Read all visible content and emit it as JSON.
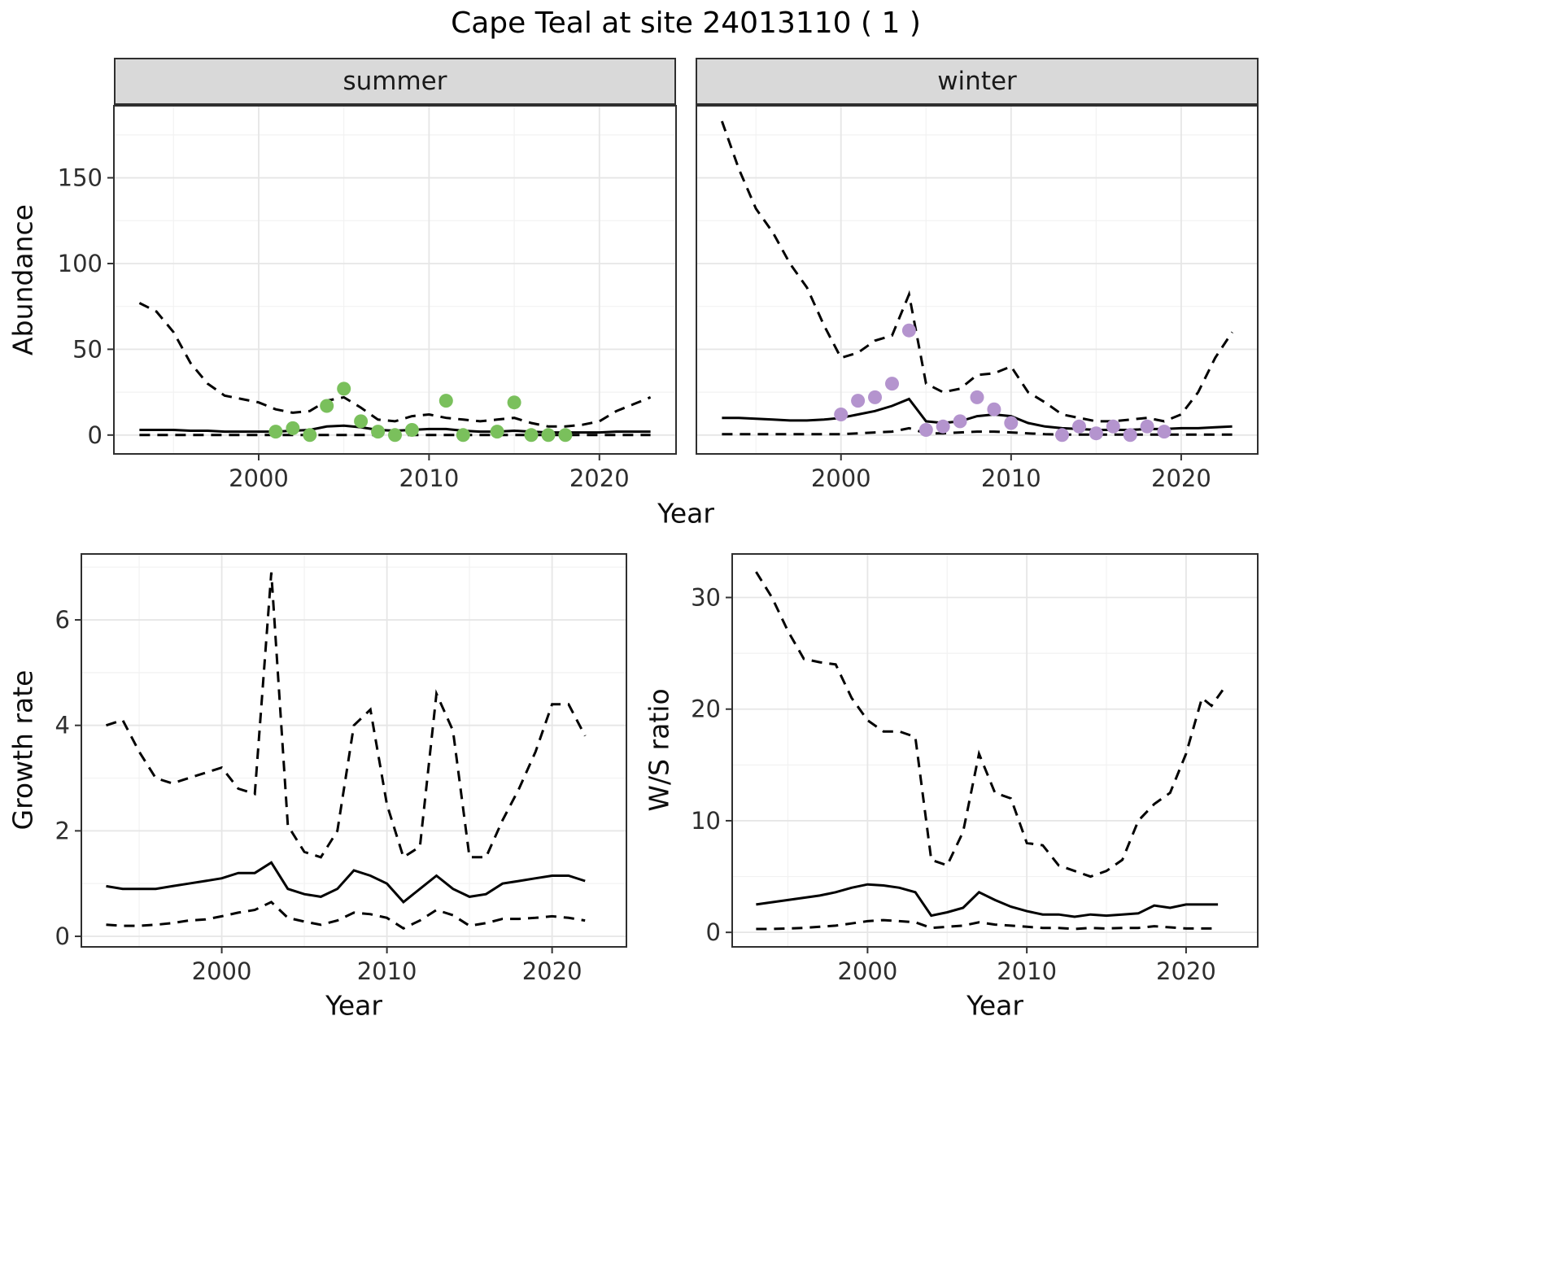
{
  "title": "Cape Teal at site 24013110 ( 1 )",
  "colors": {
    "summer_points": "#7ac05c",
    "winter_points": "#b494ce",
    "line": "#000000",
    "strip_bg": "#d9d9d9",
    "panel_border": "#2f2f2f",
    "grid_major": "#e6e6e6",
    "grid_minor": "#f2f2f2",
    "tick_text": "#2e2e2e"
  },
  "chart_data": [
    {
      "id": "abundance-summer",
      "type": "line",
      "title": "summer",
      "xlabel": "Year",
      "ylabel": "Abundance",
      "xlim": [
        1991.5,
        2024.5
      ],
      "ylim": [
        -11,
        192
      ],
      "xticks": [
        2000,
        2010,
        2020
      ],
      "yticks": [
        0,
        50,
        100,
        150
      ],
      "show_y_tick_labels": true,
      "x": [
        1993,
        1994,
        1995,
        1996,
        1997,
        1998,
        1999,
        2000,
        2001,
        2002,
        2003,
        2004,
        2005,
        2006,
        2007,
        2008,
        2009,
        2010,
        2011,
        2012,
        2013,
        2014,
        2015,
        2016,
        2017,
        2018,
        2019,
        2020,
        2021,
        2022,
        2023
      ],
      "series": [
        {
          "name": "upper-ci",
          "style": "dashed",
          "y": [
            77,
            72,
            60,
            42,
            30,
            23,
            21,
            19,
            15,
            13,
            14,
            20,
            22,
            16,
            9,
            8,
            11,
            12,
            10,
            9,
            8,
            9,
            10,
            7,
            5,
            5,
            6,
            8,
            14,
            18,
            22
          ]
        },
        {
          "name": "median",
          "style": "solid",
          "y": [
            3,
            3,
            3,
            2.5,
            2.5,
            2,
            2,
            2,
            2,
            2.5,
            3,
            5,
            5.5,
            4.5,
            3,
            2.5,
            3,
            3.5,
            3.5,
            2.5,
            2,
            2,
            2.5,
            2,
            1.5,
            1.5,
            1.5,
            1.5,
            2,
            2,
            2
          ]
        },
        {
          "name": "lower-ci",
          "style": "dashed",
          "y": [
            0,
            0,
            0,
            0,
            0,
            0,
            0,
            0,
            0,
            0,
            0,
            0,
            0,
            0,
            0,
            0,
            0,
            0,
            0,
            0,
            0,
            0,
            0,
            0,
            0,
            0,
            0,
            0,
            0,
            0,
            0
          ]
        }
      ],
      "points": {
        "name": "summer-observations",
        "color": "#7ac05c",
        "x": [
          2001,
          2002,
          2003,
          2004,
          2005,
          2006,
          2007,
          2008,
          2009,
          2011,
          2012,
          2014,
          2015,
          2016,
          2017,
          2018
        ],
        "y": [
          2,
          4,
          0,
          17,
          27,
          8,
          2,
          0,
          3,
          20,
          0,
          2,
          19,
          0,
          0,
          0
        ]
      }
    },
    {
      "id": "abundance-winter",
      "type": "line",
      "title": "winter",
      "xlabel": "Year",
      "ylabel": "Abundance",
      "xlim": [
        1991.5,
        2024.5
      ],
      "ylim": [
        -11,
        192
      ],
      "xticks": [
        2000,
        2010,
        2020
      ],
      "yticks": [
        0,
        50,
        100,
        150
      ],
      "show_y_tick_labels": false,
      "x": [
        1993,
        1994,
        1995,
        1996,
        1997,
        1998,
        1999,
        2000,
        2001,
        2002,
        2003,
        2004,
        2005,
        2006,
        2007,
        2008,
        2009,
        2010,
        2011,
        2012,
        2013,
        2014,
        2015,
        2016,
        2017,
        2018,
        2019,
        2020,
        2021,
        2022,
        2023
      ],
      "series": [
        {
          "name": "upper-ci",
          "style": "dashed",
          "y": [
            183,
            155,
            132,
            118,
            100,
            86,
            64,
            45,
            48,
            55,
            58,
            82,
            30,
            25,
            27,
            35,
            36,
            40,
            25,
            19,
            12,
            10,
            8,
            8,
            9,
            10,
            8,
            12,
            25,
            45,
            60
          ]
        },
        {
          "name": "median",
          "style": "solid",
          "y": [
            10,
            10,
            9.5,
            9,
            8.5,
            8.5,
            9,
            10,
            12,
            14,
            17,
            21,
            8,
            7,
            8,
            11,
            12,
            11,
            7,
            5,
            4,
            3.5,
            3,
            3,
            3,
            3.5,
            3.5,
            4,
            4,
            4.5,
            5
          ]
        },
        {
          "name": "lower-ci",
          "style": "dashed",
          "y": [
            0.5,
            0.5,
            0.5,
            0.5,
            0.5,
            0.5,
            0.5,
            0.5,
            1,
            1.5,
            2,
            4,
            1,
            1,
            1.5,
            2,
            2,
            1.5,
            1,
            0.5,
            0.3,
            0.3,
            0.3,
            0.3,
            0.3,
            0.3,
            0.3,
            0.3,
            0.3,
            0.3,
            0.3
          ]
        }
      ],
      "points": {
        "name": "winter-observations",
        "color": "#b494ce",
        "x": [
          2000,
          2001,
          2002,
          2003,
          2004,
          2005,
          2006,
          2007,
          2008,
          2009,
          2010,
          2013,
          2014,
          2015,
          2016,
          2017,
          2018,
          2019
        ],
        "y": [
          12,
          20,
          22,
          30,
          61,
          3,
          5,
          8,
          22,
          15,
          7,
          0,
          5,
          1,
          5,
          0,
          5,
          2
        ]
      }
    },
    {
      "id": "growth-rate",
      "type": "line",
      "title": "",
      "xlabel": "Year",
      "ylabel": "Growth rate",
      "xlim": [
        1991.5,
        2024.5
      ],
      "ylim": [
        -0.2,
        7.25
      ],
      "xticks": [
        2000,
        2010,
        2020
      ],
      "yticks": [
        0,
        2,
        4,
        6
      ],
      "show_y_tick_labels": true,
      "x": [
        1993,
        1994,
        1995,
        1996,
        1997,
        1998,
        1999,
        2000,
        2001,
        2002,
        2003,
        2004,
        2005,
        2006,
        2007,
        2008,
        2009,
        2010,
        2011,
        2012,
        2013,
        2014,
        2015,
        2016,
        2017,
        2018,
        2019,
        2020,
        2021,
        2022
      ],
      "series": [
        {
          "name": "upper-ci",
          "style": "dashed",
          "y": [
            4,
            4.1,
            3.5,
            3,
            2.9,
            3,
            3.1,
            3.2,
            2.8,
            2.7,
            6.9,
            2.1,
            1.6,
            1.5,
            2,
            4,
            4.3,
            2.5,
            1.5,
            1.7,
            4.6,
            3.9,
            1.5,
            1.5,
            2.2,
            2.8,
            3.5,
            4.4,
            4.4,
            3.8
          ]
        },
        {
          "name": "median",
          "style": "solid",
          "y": [
            0.95,
            0.9,
            0.9,
            0.9,
            0.95,
            1,
            1.05,
            1.1,
            1.2,
            1.2,
            1.4,
            0.9,
            0.8,
            0.75,
            0.9,
            1.25,
            1.15,
            1,
            0.65,
            0.9,
            1.15,
            0.9,
            0.75,
            0.8,
            1,
            1.05,
            1.1,
            1.15,
            1.15,
            1.05
          ]
        },
        {
          "name": "lower-ci",
          "style": "dashed",
          "y": [
            0.22,
            0.2,
            0.2,
            0.22,
            0.25,
            0.3,
            0.32,
            0.38,
            0.45,
            0.5,
            0.65,
            0.35,
            0.28,
            0.22,
            0.3,
            0.45,
            0.42,
            0.35,
            0.15,
            0.3,
            0.5,
            0.4,
            0.2,
            0.25,
            0.33,
            0.33,
            0.35,
            0.38,
            0.35,
            0.3
          ]
        }
      ]
    },
    {
      "id": "ws-ratio",
      "type": "line",
      "title": "",
      "xlabel": "Year",
      "ylabel": "W/S ratio",
      "xlim": [
        1991.5,
        2024.5
      ],
      "ylim": [
        -1.3,
        33.9
      ],
      "xticks": [
        2000,
        2010,
        2020
      ],
      "yticks": [
        0,
        10,
        20,
        30
      ],
      "show_y_tick_labels": true,
      "x": [
        1993,
        1994,
        1995,
        1996,
        1997,
        1998,
        1999,
        2000,
        2001,
        2002,
        2003,
        2004,
        2005,
        2006,
        2007,
        2008,
        2009,
        2010,
        2011,
        2012,
        2013,
        2014,
        2015,
        2016,
        2017,
        2018,
        2019,
        2020,
        2021,
        2022
      ],
      "series": [
        {
          "name": "upper-ci",
          "style": "dashed",
          "x": [
            1993,
            1994,
            1995,
            1996,
            1997,
            1998,
            1999,
            2000,
            2001,
            2002,
            2003,
            2004,
            2005,
            2006,
            2007,
            2008,
            2009,
            2010,
            2011,
            2012,
            2013,
            2014,
            2015,
            2016,
            2017,
            2018,
            2019,
            2020,
            2021,
            2021.6,
            2022.3
          ],
          "y": [
            32.3,
            30,
            27,
            24.5,
            24.2,
            24,
            21,
            19,
            18,
            18,
            17.5,
            6.5,
            6,
            9,
            16,
            12.5,
            12,
            8,
            7.8,
            6,
            5.5,
            5,
            5.5,
            6.5,
            10,
            11.5,
            12.5,
            16,
            21,
            20.3,
            21.7
          ]
        },
        {
          "name": "median",
          "style": "solid",
          "y": [
            2.5,
            2.7,
            2.9,
            3.1,
            3.3,
            3.6,
            4,
            4.3,
            4.2,
            4,
            3.6,
            1.5,
            1.8,
            2.2,
            3.6,
            2.9,
            2.3,
            1.9,
            1.6,
            1.6,
            1.4,
            1.6,
            1.5,
            1.6,
            1.7,
            2.4,
            2.2,
            2.5,
            2.5,
            2.5
          ]
        },
        {
          "name": "lower-ci",
          "style": "dashed",
          "y": [
            0.3,
            0.3,
            0.35,
            0.4,
            0.5,
            0.6,
            0.8,
            1,
            1.1,
            1,
            0.9,
            0.4,
            0.5,
            0.6,
            0.9,
            0.7,
            0.6,
            0.5,
            0.4,
            0.4,
            0.3,
            0.4,
            0.35,
            0.4,
            0.4,
            0.55,
            0.45,
            0.35,
            0.35,
            0.35
          ]
        }
      ]
    }
  ]
}
